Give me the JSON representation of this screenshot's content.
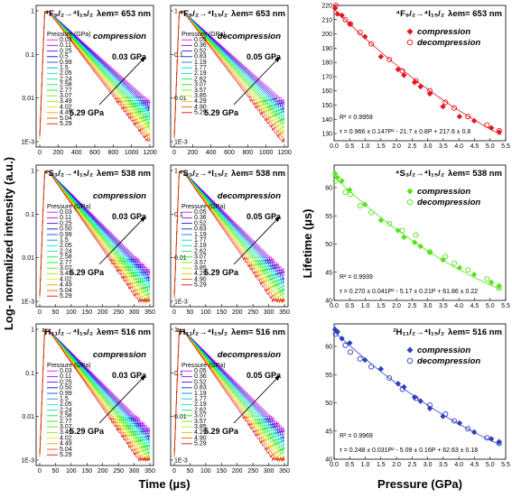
{
  "labels": {
    "left_ylabel": "Log- normalized intensity (a.u.)",
    "left_xlabel": "Time (µs)",
    "right_ylabel": "Lifetime (µs)",
    "right_xlabel": "Pressure (GPa)"
  },
  "colors": {
    "red": "#e8141b",
    "green": "#56e31a",
    "blue": "#2d3fbf"
  },
  "decay_rows": [
    {
      "transition": "⁴F₉/₂→⁴I₁₅/₂",
      "wavelength": "λem= 653 nm",
      "color": "#e8141b",
      "x_ticks": [
        "0",
        "200",
        "400",
        "600",
        "800",
        "1000",
        "1200"
      ],
      "y_ticks": [
        "1",
        "0.1",
        "0.01",
        "1E-3"
      ],
      "tau_range": [
        150,
        220
      ],
      "panels": [
        {
          "mode": "compression",
          "arrow_top": "0.03 GPa",
          "arrow_bottom": "5.29 GPa",
          "legend_title": "Pressure (GPa)",
          "pressures": [
            "0.03",
            "0.11",
            "0.25",
            "0.5",
            "0.99",
            "1.5",
            "2.05",
            "2.24",
            "2.58",
            "2.77",
            "3.07",
            "3.49",
            "4.02",
            "4.49",
            "5.04",
            "5.29"
          ]
        },
        {
          "mode": "decompression",
          "arrow_top": "0.05 GPa",
          "arrow_bottom": "5.29 GPa",
          "legend_title": "Pressure (GPa)",
          "pressures": [
            "0.05",
            "0.36",
            "0.52",
            "0.83",
            "1.19",
            "1.77",
            "2.19",
            "2.62",
            "3.07",
            "3.57",
            "3.85",
            "4.29",
            "4.90",
            "5.29"
          ]
        }
      ]
    },
    {
      "transition": "⁴S₃/₂→⁴I₁₅/₂",
      "wavelength": "λem= 538 nm",
      "color": "#56e31a",
      "x_ticks": [
        "0",
        "50",
        "100",
        "150",
        "200",
        "250",
        "300",
        "350"
      ],
      "y_ticks": [
        "1",
        "0.1",
        "0.01",
        "1E-3"
      ],
      "tau_range": [
        44,
        64
      ],
      "panels": [
        {
          "mode": "compression",
          "arrow_top": "0.03 GPa",
          "arrow_bottom": "5.29 GPa",
          "legend_title": "Pressure (GPa)",
          "pressures": [
            "0.03",
            "0.11",
            "0.25",
            "0.50",
            "0.99",
            "1.5",
            "2.05",
            "2.24",
            "2.58",
            "2.77",
            "3.07",
            "3.49",
            "4.02",
            "4.49",
            "5.04",
            "5.29"
          ]
        },
        {
          "mode": "decompression",
          "arrow_top": "0.05 GPa",
          "arrow_bottom": "5.29 GPa",
          "legend_title": "Pressure (GPa)",
          "pressures": [
            "0.05",
            "0.36",
            "0.52",
            "0.83",
            "1.19",
            "1.77",
            "2.19",
            "2.62",
            "3.07",
            "3.57",
            "3.85",
            "4.29",
            "4.90",
            "5.29"
          ]
        }
      ]
    },
    {
      "transition": "²H₁₁/₂→⁴I₁₅/₂",
      "wavelength": "λem= 516 nm",
      "color": "#2d3fbf",
      "x_ticks": [
        "0",
        "50",
        "100",
        "150",
        "200",
        "250",
        "300",
        "350"
      ],
      "y_ticks": [
        "1",
        "0.1",
        "0.01",
        "1E-3"
      ],
      "tau_range": [
        44,
        64
      ],
      "panels": [
        {
          "mode": "compression",
          "arrow_top": "0.03 GPa",
          "arrow_bottom": "5.29 GPa",
          "legend_title": "Pressure (GPa)",
          "pressures": [
            "0.03",
            "0.11",
            "0.25",
            "0.50",
            "0.99",
            "1.5",
            "2.05",
            "2.24",
            "2.58",
            "2.77",
            "3.07",
            "3.49",
            "4.02",
            "4.49",
            "5.04",
            "5.29"
          ]
        },
        {
          "mode": "decompression",
          "arrow_top": "0.05 GPa",
          "arrow_bottom": "5.29 GPa",
          "legend_title": "Pressure (GPa)",
          "pressures": [
            "0.05",
            "0.36",
            "0.52",
            "0.83",
            "1.19",
            "1.77",
            "2.19",
            "2.62",
            "3.07",
            "3.57",
            "3.85",
            "4.29",
            "4.90",
            "5.29"
          ]
        }
      ]
    }
  ],
  "chart_data": [
    {
      "type": "scatter",
      "transition": "⁴F₉/₂→⁴I₁₅/₂",
      "wavelength": "λem= 653 nm",
      "color": "#e8141b",
      "xlabel": "Pressure (GPa)",
      "ylabel": "Lifetime (µs)",
      "xlim": [
        0,
        5.5
      ],
      "ylim": [
        125,
        220
      ],
      "x_ticks": [
        "0.0",
        "0.5",
        "1.0",
        "1.5",
        "2.0",
        "2.5",
        "3.0",
        "3.5",
        "4.0",
        "4.5",
        "5.0",
        "5.5"
      ],
      "y_ticks": [
        "130",
        "140",
        "150",
        "160",
        "170",
        "180",
        "190",
        "200",
        "210",
        "220"
      ],
      "r2": "R² = 0.9959",
      "equation": "τ = 0.966 ± 0.147P² - 21.7 ± 0.8P + 217.6 ± 0.8",
      "fit": [
        0.966,
        -21.7,
        217.6
      ],
      "series": [
        {
          "name": "compression",
          "marker": "filled-diamond",
          "x": [
            0.03,
            0.11,
            0.25,
            0.5,
            0.99,
            1.5,
            2.05,
            2.24,
            2.58,
            2.77,
            3.07,
            3.49,
            4.02,
            4.49,
            5.04,
            5.29
          ],
          "y": [
            218,
            214,
            213,
            207,
            198,
            184,
            175,
            171,
            166,
            163,
            158,
            149,
            142,
            139,
            134,
            131
          ]
        },
        {
          "name": "decompression",
          "marker": "open-circle",
          "x": [
            0.05,
            0.36,
            0.52,
            0.83,
            1.19,
            1.77,
            2.19,
            2.62,
            3.07,
            3.57,
            3.85,
            4.29,
            4.9,
            5.29
          ],
          "y": [
            220,
            210,
            207,
            201,
            193,
            182,
            174,
            167,
            160,
            152,
            148,
            142,
            136,
            132
          ]
        }
      ]
    },
    {
      "type": "scatter",
      "transition": "⁴S₃/₂→⁴I₁₅/₂",
      "wavelength": "λem= 538 nm",
      "color": "#56e31a",
      "xlabel": "Pressure (GPa)",
      "ylabel": "Lifetime (µs)",
      "xlim": [
        0,
        5.5
      ],
      "ylim": [
        40,
        64
      ],
      "x_ticks": [
        "0.0",
        "0.5",
        "1.0",
        "1.5",
        "2.0",
        "2.5",
        "3.0",
        "3.5",
        "4.0",
        "4.5",
        "5.0",
        "5.5"
      ],
      "y_ticks": [
        "40",
        "45",
        "50",
        "55",
        "60"
      ],
      "r2": "R² = 0.9939",
      "equation": "τ = 0.270 ± 0.041P² - 5.17 ± 0.21P + 61.86 ± 0.22",
      "fit": [
        0.27,
        -5.17,
        61.86
      ],
      "series": [
        {
          "name": "compression",
          "marker": "filled-diamond",
          "x": [
            0.03,
            0.11,
            0.25,
            0.5,
            0.99,
            1.5,
            2.05,
            2.24,
            2.58,
            2.77,
            3.07,
            3.49,
            4.02,
            4.49,
            5.04,
            5.29
          ],
          "y": [
            62.5,
            61.8,
            61.2,
            59.6,
            57.0,
            54.2,
            52.4,
            51.2,
            50.3,
            49.6,
            48.5,
            47.2,
            45.8,
            44.6,
            43.2,
            42.6
          ]
        },
        {
          "name": "decompression",
          "marker": "open-circle",
          "x": [
            0.05,
            0.36,
            0.52,
            0.83,
            1.19,
            1.77,
            2.19,
            2.62,
            3.07,
            3.57,
            3.85,
            4.29,
            4.9,
            5.29
          ],
          "y": [
            61.2,
            59.2,
            58.8,
            56.8,
            55.6,
            53.6,
            52.4,
            51.6,
            48.6,
            47.8,
            46.6,
            45.4,
            43.8,
            42.2
          ]
        }
      ]
    },
    {
      "type": "scatter",
      "transition": "²H₁₁/₂→⁴I₁₅/₂",
      "wavelength": "λem= 516 nm",
      "color": "#2d3fbf",
      "xlabel": "Pressure (GPa)",
      "ylabel": "Lifetime (µs)",
      "xlim": [
        0,
        5.5
      ],
      "ylim": [
        40,
        64
      ],
      "x_ticks": [
        "0.0",
        "0.5",
        "1.0",
        "1.5",
        "2.0",
        "2.5",
        "3.0",
        "3.5",
        "4.0",
        "4.5",
        "5.0",
        "5.5"
      ],
      "y_ticks": [
        "40",
        "45",
        "50",
        "55",
        "60"
      ],
      "r2": "R² = 0.9969",
      "equation": "τ = 0.248 ± 0.031P² - 5.09 ± 0.16P + 62.63 ± 0.18",
      "fit": [
        0.248,
        -5.09,
        62.63
      ],
      "series": [
        {
          "name": "compression",
          "marker": "filled-diamond",
          "x": [
            0.03,
            0.11,
            0.25,
            0.5,
            0.99,
            1.5,
            2.05,
            2.24,
            2.58,
            2.77,
            3.07,
            3.49,
            4.02,
            4.49,
            5.04,
            5.29
          ],
          "y": [
            63.0,
            62.6,
            61.4,
            60.6,
            57.6,
            56.0,
            53.4,
            52.8,
            51.0,
            50.3,
            49.0,
            47.6,
            46.4,
            44.8,
            43.6,
            43.1
          ]
        },
        {
          "name": "decompression",
          "marker": "open-circle",
          "x": [
            0.05,
            0.36,
            0.52,
            0.83,
            1.19,
            1.77,
            2.19,
            2.62,
            3.07,
            3.57,
            3.85,
            4.29,
            4.9,
            5.29
          ],
          "y": [
            62.2,
            60.2,
            59.0,
            57.8,
            56.4,
            54.4,
            52.4,
            50.8,
            49.6,
            48.0,
            46.8,
            45.4,
            43.8,
            42.8
          ]
        }
      ]
    }
  ]
}
